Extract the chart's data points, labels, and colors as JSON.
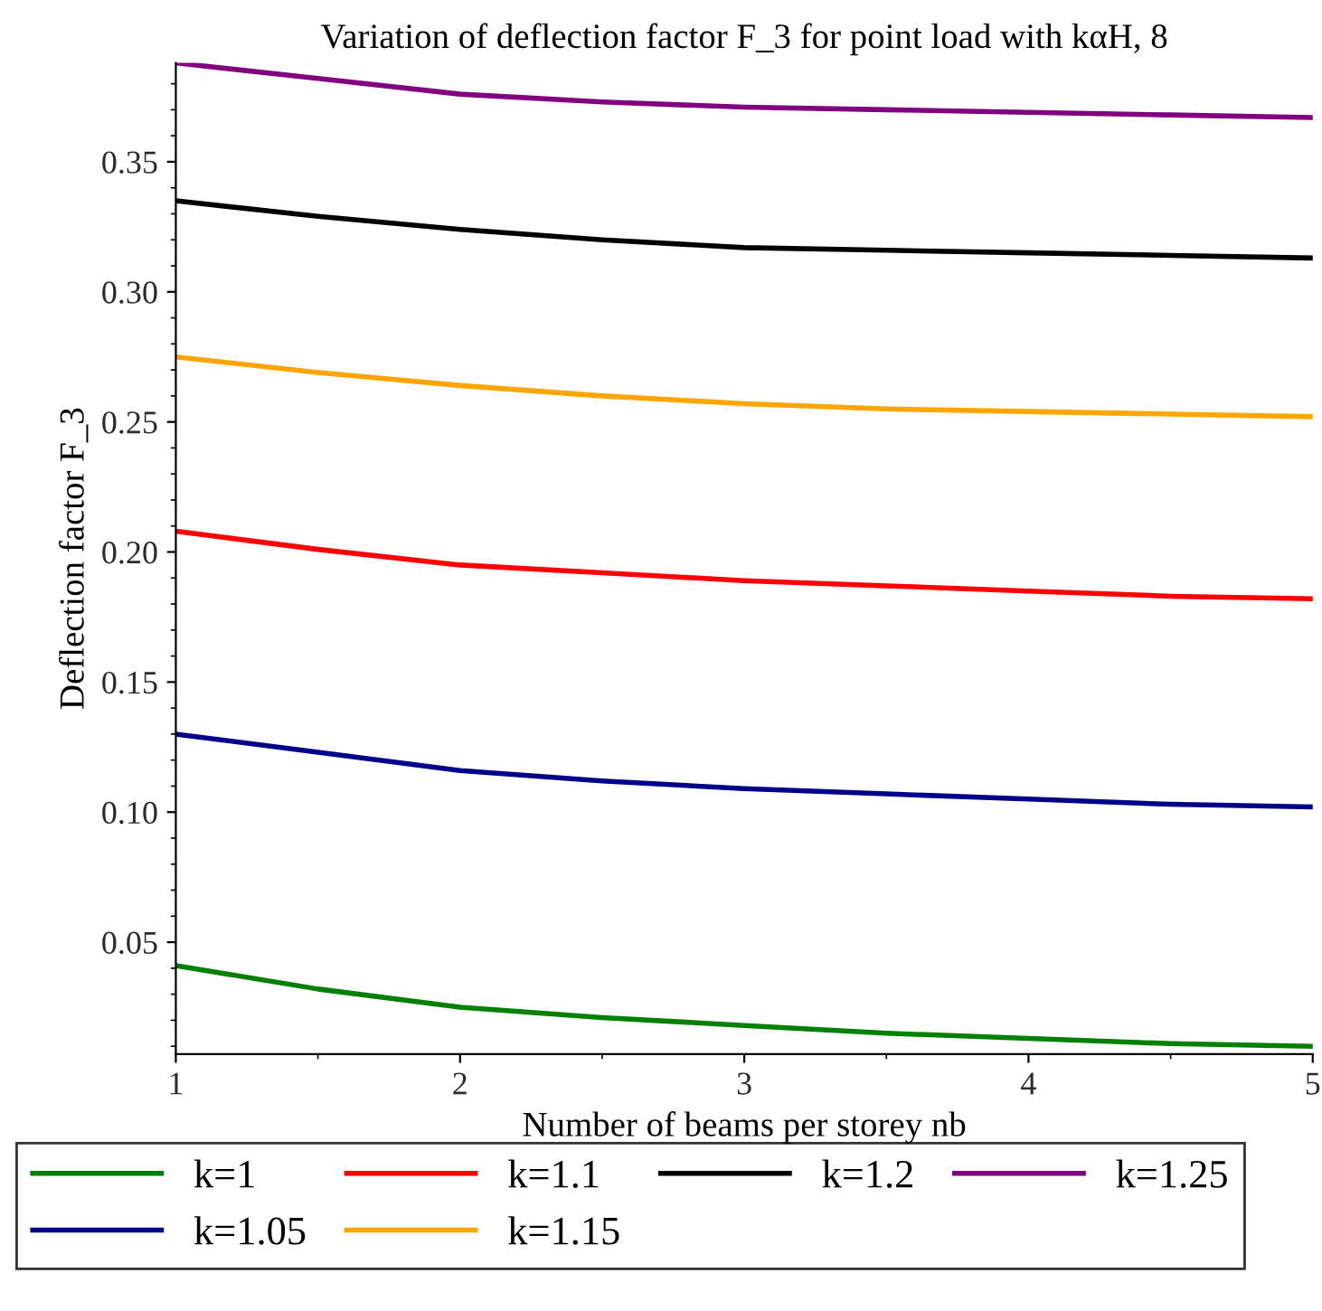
{
  "chart_data": {
    "type": "line",
    "title": "Variation of deflection factor F_3 for point load with kαH, 8",
    "xlabel": "Number of beams per storey nb",
    "ylabel": "Deflection factor F_3",
    "x": [
      1,
      1.5,
      2,
      2.5,
      3,
      3.5,
      4,
      4.5,
      5
    ],
    "series": [
      {
        "name": "k=1",
        "color": "#008000",
        "values": [
          0.041,
          0.032,
          0.025,
          0.021,
          0.018,
          0.015,
          0.013,
          0.011,
          0.01
        ]
      },
      {
        "name": "k=1.05",
        "color": "#00008b",
        "values": [
          0.13,
          0.123,
          0.116,
          0.112,
          0.109,
          0.107,
          0.105,
          0.103,
          0.102
        ]
      },
      {
        "name": "k=1.1",
        "color": "#ff0000",
        "values": [
          0.208,
          0.201,
          0.195,
          0.192,
          0.189,
          0.187,
          0.185,
          0.183,
          0.182
        ]
      },
      {
        "name": "k=1.15",
        "color": "#ffa500",
        "values": [
          0.275,
          0.269,
          0.264,
          0.26,
          0.257,
          0.255,
          0.254,
          0.253,
          0.252
        ]
      },
      {
        "name": "k=1.2",
        "color": "#000000",
        "values": [
          0.335,
          0.329,
          0.324,
          0.32,
          0.317,
          0.316,
          0.315,
          0.314,
          0.313
        ]
      },
      {
        "name": "k=1.25",
        "color": "#800080",
        "values": [
          0.388,
          0.382,
          0.376,
          0.373,
          0.371,
          0.37,
          0.369,
          0.368,
          0.367
        ]
      }
    ],
    "xlim": [
      1,
      5
    ],
    "xticks": [
      1,
      2,
      3,
      4,
      5
    ],
    "ylim": [
      0.007,
      0.388
    ],
    "yticks": [
      {
        "value": 0.05,
        "label": "0.05"
      },
      {
        "value": 0.1,
        "label": "0.10"
      },
      {
        "value": 0.15,
        "label": "0.15"
      },
      {
        "value": 0.2,
        "label": "0.20"
      },
      {
        "value": 0.25,
        "label": "0.25"
      },
      {
        "value": 0.3,
        "label": "0.30"
      },
      {
        "value": 0.35,
        "label": "0.35"
      }
    ],
    "grid": false,
    "legend": "bottom",
    "marker": "none",
    "line_style": "solid"
  }
}
